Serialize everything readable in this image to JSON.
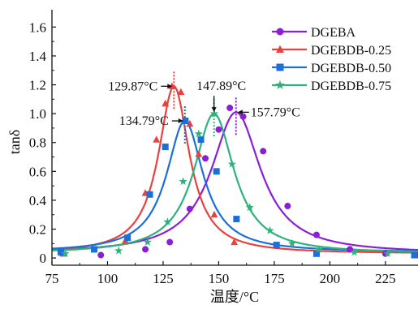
{
  "chart_data": {
    "type": "line",
    "xlabel": "温度/°C",
    "ylabel": "tanδ",
    "xlim": [
      75,
      240
    ],
    "ylim": [
      -0.05,
      1.72
    ],
    "x_ticks": [
      75,
      100,
      125,
      150,
      175,
      200,
      225
    ],
    "y_ticks": [
      0,
      0.2,
      0.4,
      0.6,
      0.8,
      1.0,
      1.2,
      1.4,
      1.6
    ],
    "x_tick_labels": [
      "75",
      "100",
      "125",
      "150",
      "175",
      "200",
      "225"
    ],
    "y_tick_labels": [
      "0",
      "0.2",
      "0.4",
      "0.6",
      "0.8",
      "1.0",
      "1.2",
      "1.4",
      "1.6"
    ],
    "grid": false,
    "legend_position": "top-right",
    "series": [
      {
        "name": "DGEBA",
        "color": "#8b1fd6",
        "marker": "circle",
        "peak_x": 157.79,
        "peak_y": 1.01,
        "width": 13.5,
        "baseline": 0.03,
        "markers": [
          {
            "x": 97,
            "y": 0.02
          },
          {
            "x": 117,
            "y": 0.06
          },
          {
            "x": 128,
            "y": 0.11
          },
          {
            "x": 137,
            "y": 0.34
          },
          {
            "x": 144,
            "y": 0.69
          },
          {
            "x": 150,
            "y": 0.89
          },
          {
            "x": 155,
            "y": 1.04
          },
          {
            "x": 161,
            "y": 0.98
          },
          {
            "x": 170,
            "y": 0.74
          },
          {
            "x": 181,
            "y": 0.36
          },
          {
            "x": 194,
            "y": 0.16
          },
          {
            "x": 209,
            "y": 0.06
          },
          {
            "x": 225,
            "y": 0.03
          },
          {
            "x": 239,
            "y": 0.02
          }
        ]
      },
      {
        "name": "DGEBDB-0.25",
        "color": "#e8423f",
        "marker": "triangle",
        "peak_x": 129.87,
        "peak_y": 1.19,
        "width": 8.5,
        "baseline": 0.03,
        "markers": [
          {
            "x": 80,
            "y": 0.03
          },
          {
            "x": 108,
            "y": 0.12
          },
          {
            "x": 117,
            "y": 0.45
          },
          {
            "x": 122,
            "y": 0.82
          },
          {
            "x": 126,
            "y": 1.07
          },
          {
            "x": 129,
            "y": 1.19
          },
          {
            "x": 133,
            "y": 1.15
          },
          {
            "x": 137,
            "y": 0.93
          },
          {
            "x": 141,
            "y": 0.72
          },
          {
            "x": 148,
            "y": 0.3
          },
          {
            "x": 157,
            "y": 0.11
          },
          {
            "x": 194,
            "y": 0.03
          }
        ]
      },
      {
        "name": "DGEBDB-0.50",
        "color": "#1a6fd9",
        "marker": "square",
        "peak_x": 134.79,
        "peak_y": 0.95,
        "width": 10.0,
        "baseline": 0.04,
        "markers": [
          {
            "x": 79,
            "y": 0.04
          },
          {
            "x": 94,
            "y": 0.06
          },
          {
            "x": 109,
            "y": 0.14
          },
          {
            "x": 119,
            "y": 0.44
          },
          {
            "x": 126,
            "y": 0.77
          },
          {
            "x": 135,
            "y": 0.95
          },
          {
            "x": 142,
            "y": 0.82
          },
          {
            "x": 149,
            "y": 0.6
          },
          {
            "x": 158,
            "y": 0.27
          },
          {
            "x": 176,
            "y": 0.09
          },
          {
            "x": 194,
            "y": 0.03
          },
          {
            "x": 238,
            "y": 0.02
          }
        ]
      },
      {
        "name": "DGEBDB-0.75",
        "color": "#2db37a",
        "marker": "star",
        "peak_x": 147.89,
        "peak_y": 1.0,
        "width": 11.0,
        "baseline": 0.03,
        "markers": [
          {
            "x": 81,
            "y": 0.03
          },
          {
            "x": 105,
            "y": 0.05
          },
          {
            "x": 118,
            "y": 0.11
          },
          {
            "x": 127,
            "y": 0.25
          },
          {
            "x": 134,
            "y": 0.53
          },
          {
            "x": 141,
            "y": 0.86
          },
          {
            "x": 148,
            "y": 1.0
          },
          {
            "x": 156,
            "y": 0.65
          },
          {
            "x": 164,
            "y": 0.35
          },
          {
            "x": 173,
            "y": 0.19
          },
          {
            "x": 183,
            "y": 0.1
          },
          {
            "x": 195,
            "y": 0.06
          },
          {
            "x": 211,
            "y": 0.04
          },
          {
            "x": 226,
            "y": 0.03
          }
        ]
      }
    ],
    "annotations": [
      {
        "series": 1,
        "text": "129.87°C",
        "x": 129.87,
        "y": 1.19,
        "label_side": "left"
      },
      {
        "series": 2,
        "text": "134.79°C",
        "x": 134.79,
        "y": 0.95,
        "label_side": "left"
      },
      {
        "series": 3,
        "text": "147.89°C",
        "x": 147.89,
        "y": 1.0,
        "label_side": "top"
      },
      {
        "series": 0,
        "text": "157.79°C",
        "x": 157.79,
        "y": 1.01,
        "label_side": "right"
      }
    ]
  }
}
